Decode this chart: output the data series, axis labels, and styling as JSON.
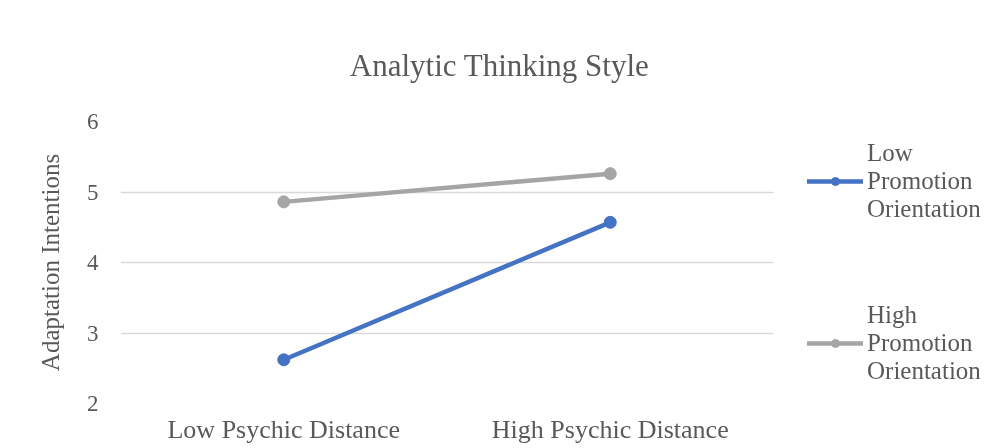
{
  "chart_data": {
    "type": "line",
    "title": "Analytic Thinking Style",
    "ylabel": "Adaptation Intentions",
    "categories": [
      "Low Psychic Distance",
      "High Psychic Distance"
    ],
    "series": [
      {
        "name": "Low Promotion Orientation",
        "color": "#4472c4",
        "values": [
          2.62,
          4.57
        ]
      },
      {
        "name": "High Promotion Orientation",
        "color": "#a5a5a5",
        "values": [
          4.86,
          5.26
        ]
      }
    ],
    "ylim": [
      2,
      6
    ],
    "yticks": [
      2,
      3,
      4,
      5,
      6
    ],
    "grid": "y",
    "legend": "right",
    "marker": "circle"
  }
}
